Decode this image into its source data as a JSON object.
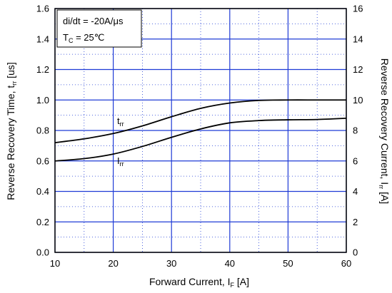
{
  "chart_data": {
    "type": "line",
    "title": "",
    "xlabel": "Forward Current, I",
    "xlabel_sub": "F",
    "xlabel_unit": " [A]",
    "ylabel": "Reverse Recovery Time, t",
    "ylabel_sub": "rr",
    "ylabel_unit": " [us]",
    "y2label": "Reverse Recovery Current, I",
    "y2label_sub": "rr",
    "y2label_unit": " [A]",
    "xlim": [
      10,
      60
    ],
    "ylim": [
      0,
      1.6
    ],
    "y2lim": [
      0,
      16
    ],
    "x_ticks": [
      "10",
      "20",
      "30",
      "40",
      "50",
      "60"
    ],
    "y_ticks": [
      "0.0",
      "0.2",
      "0.4",
      "0.6",
      "0.8",
      "1.0",
      "1.2",
      "1.4",
      "1.6"
    ],
    "y2_ticks": [
      "0",
      "2",
      "4",
      "6",
      "8",
      "10",
      "12",
      "14",
      "16"
    ],
    "grid": true,
    "annotation": {
      "line1": "di/dt = -20A/μs",
      "line2_main": "T",
      "line2_sub": "C",
      "line2_rest": " = 25℃"
    },
    "series": [
      {
        "name": "t",
        "name_sub": "rr",
        "axis": "left",
        "x": [
          10,
          15,
          20,
          25,
          30,
          35,
          40,
          45,
          50,
          55,
          60
        ],
        "y": [
          0.72,
          0.745,
          0.78,
          0.83,
          0.89,
          0.945,
          0.98,
          0.997,
          1.0,
          1.0,
          1.0
        ]
      },
      {
        "name": "I",
        "name_sub": "rr",
        "axis": "right",
        "x": [
          10,
          15,
          20,
          25,
          30,
          35,
          40,
          45,
          50,
          55,
          60
        ],
        "y": [
          6.0,
          6.15,
          6.45,
          6.95,
          7.55,
          8.1,
          8.5,
          8.65,
          8.7,
          8.72,
          8.8
        ]
      }
    ]
  }
}
